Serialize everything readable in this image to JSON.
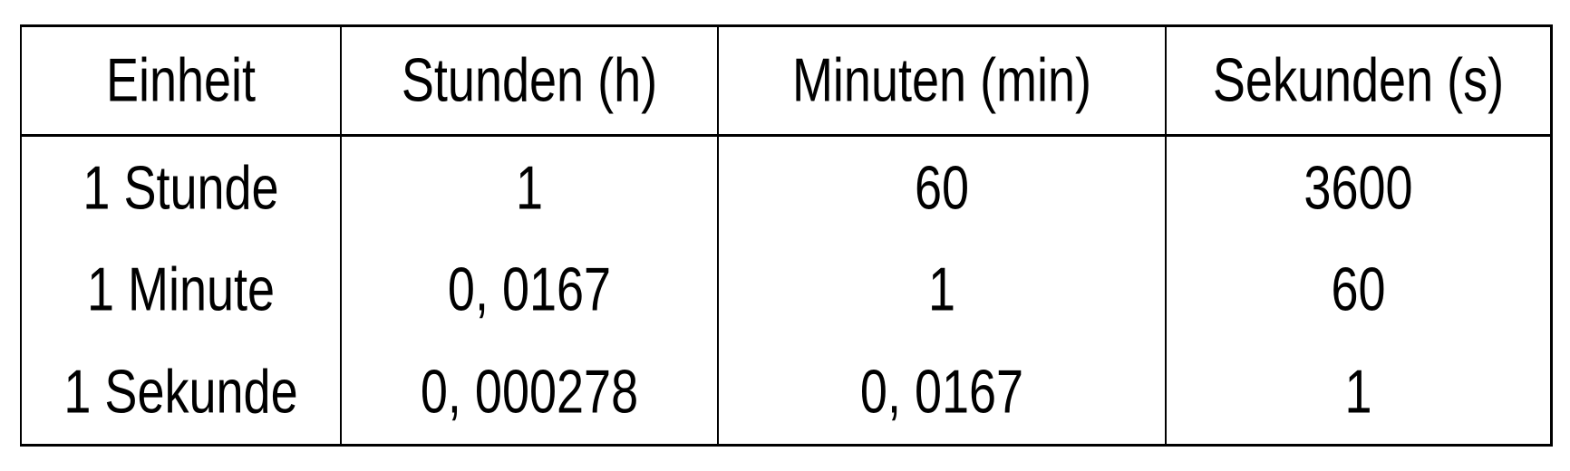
{
  "table": {
    "headers": [
      "Einheit",
      "Stunden (h)",
      "Minuten (min)",
      "Sekunden (s)"
    ],
    "rows": [
      [
        "1 Stunde",
        "1",
        "60",
        "3600"
      ],
      [
        "1 Minute",
        "0, 0167",
        "1",
        "60"
      ],
      [
        "1 Sekunde",
        "0, 000278",
        "0, 0167",
        "1"
      ]
    ]
  }
}
